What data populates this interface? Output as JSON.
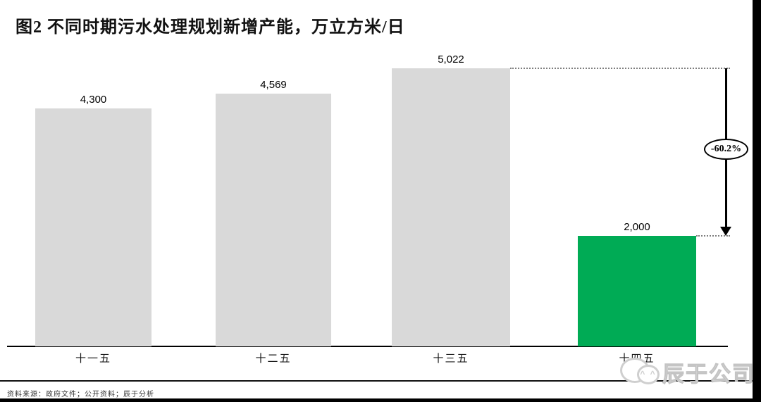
{
  "page": {
    "title": "图2 不同时期污水处理规划新增产能，万立方米/日",
    "footer_source": "资料来源：政府文件；公开资料；辰于分析",
    "watermark_company": "辰于公司",
    "watermark_icon": "wechat-chat-bubbles-icon"
  },
  "colors": {
    "bar_default": "#D9D9D9",
    "bar_highlight": "#00AB55",
    "axis": "#000000",
    "annotation_line": "#7F7F7F"
  },
  "chart_data": {
    "type": "bar",
    "title": "图2 不同时期污水处理规划新增产能，万立方米/日",
    "unit": "万立方米/日",
    "categories": [
      "十一五",
      "十二五",
      "十三五",
      "十四五"
    ],
    "values": [
      4300,
      4569,
      5022,
      2000
    ],
    "value_labels": [
      "4,300",
      "4,569",
      "5,022",
      "2,000"
    ],
    "highlight_index": 3,
    "xlabel": "",
    "ylabel": "",
    "ylim": [
      0,
      5022
    ],
    "grid": false,
    "legend": false,
    "annotation": {
      "label": "-60.2%",
      "from_category": "十三五",
      "to_category": "十四五",
      "from_value": 5022,
      "to_value": 2000
    }
  }
}
